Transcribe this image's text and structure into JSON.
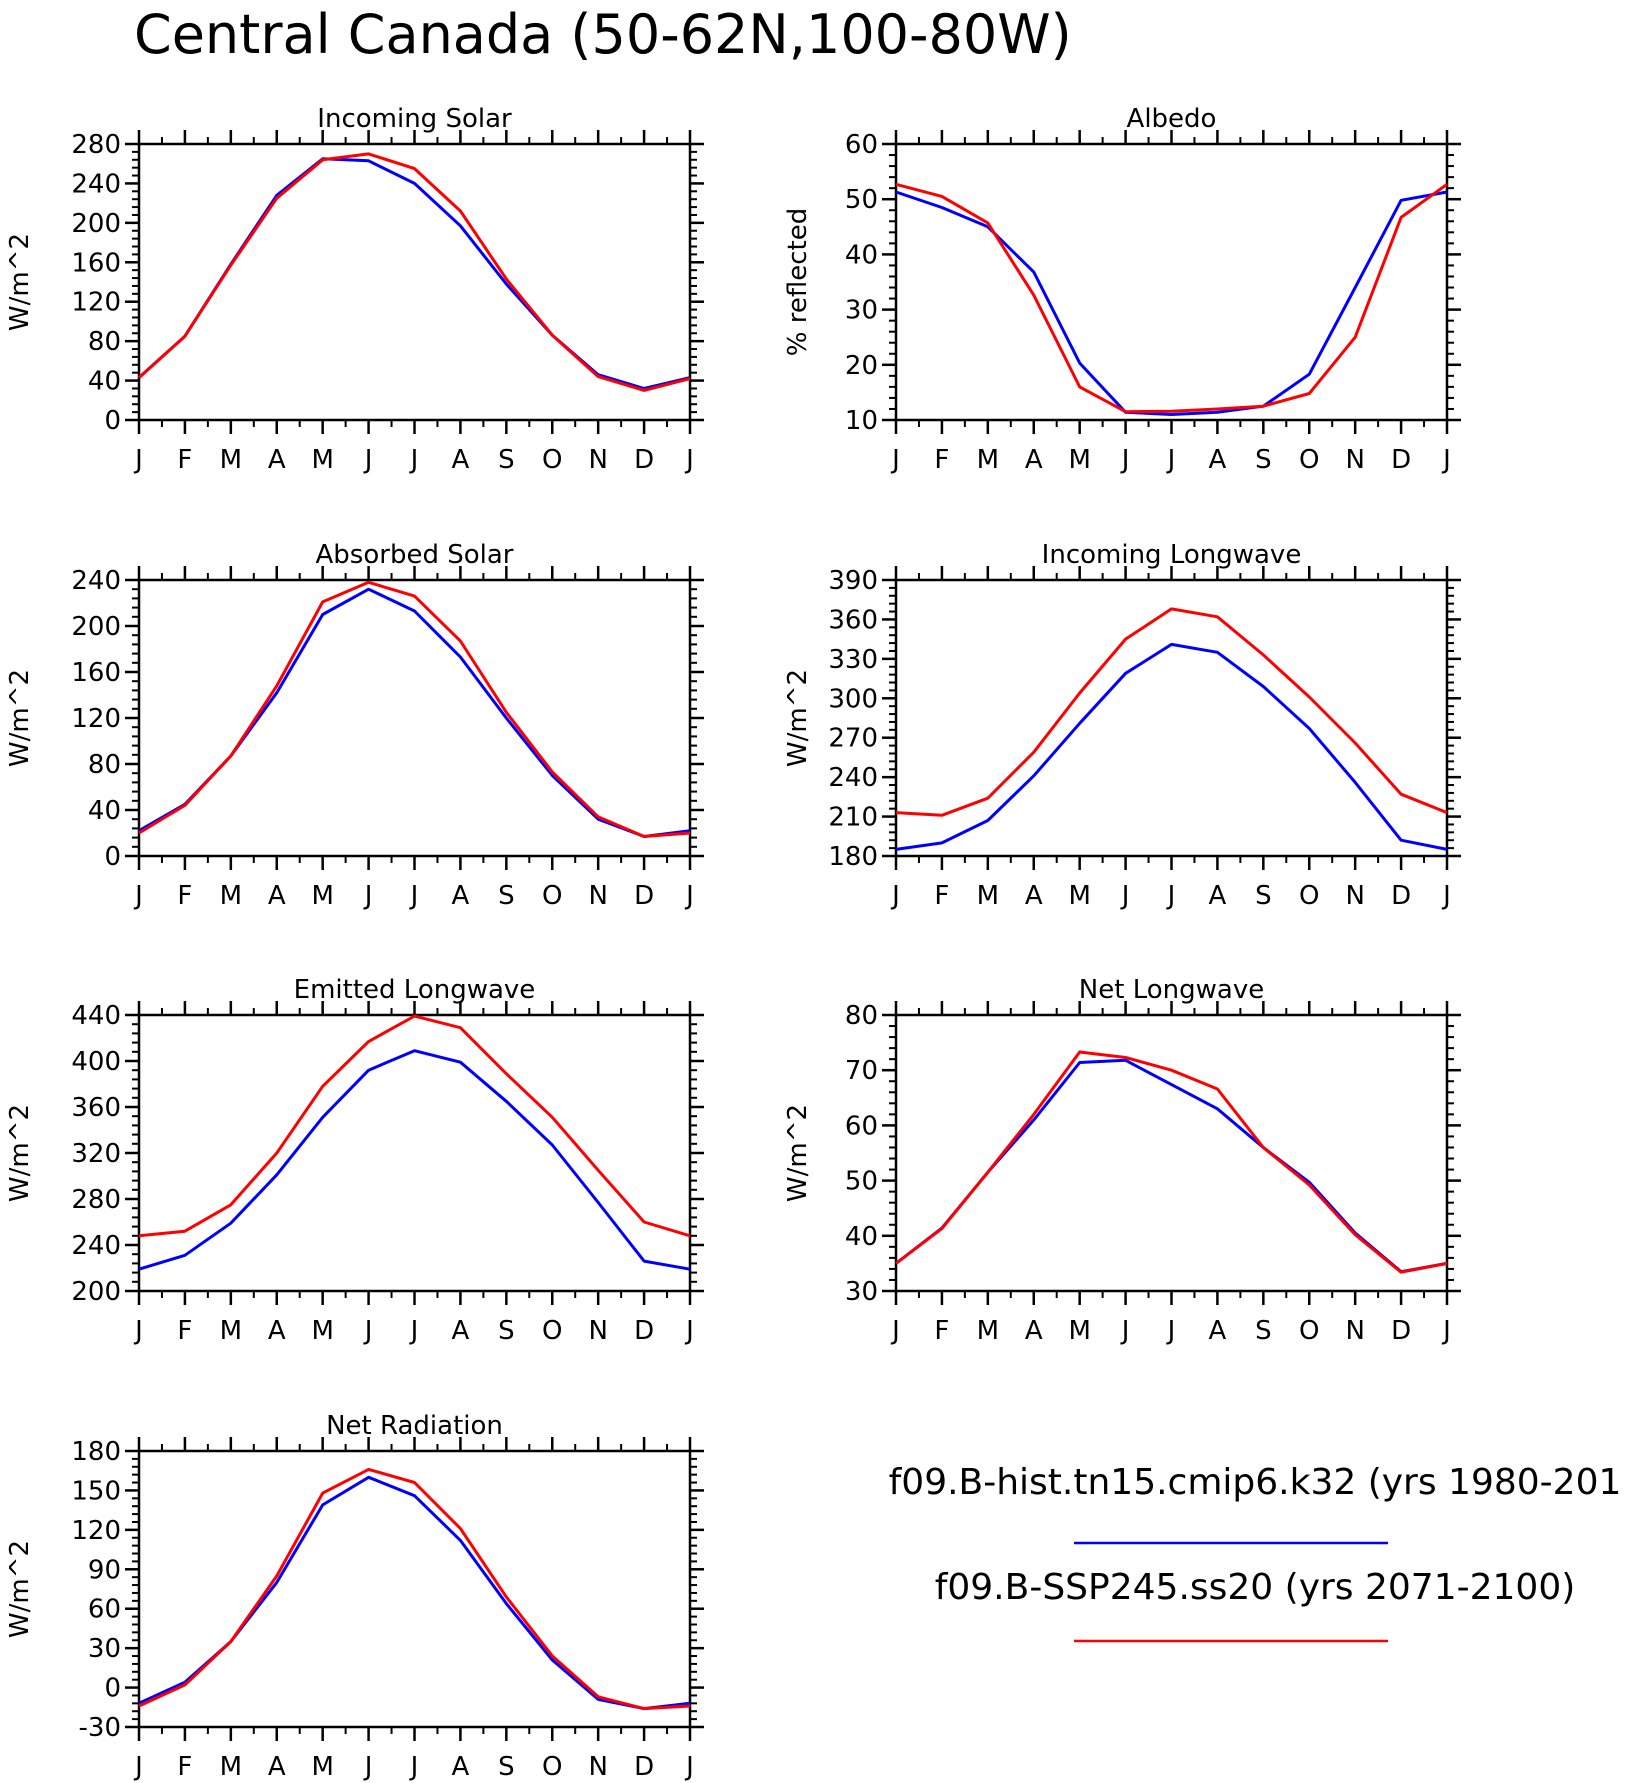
{
  "title": "Central Canada (50-62N,100-80W)",
  "legend": [
    {
      "label": "f09.B-hist.tn15.cmip6.k32 (yrs 1980-201",
      "color": "#0000ff"
    },
    {
      "label": "f09.B-SSP245.ss20 (yrs 2071-2100)",
      "color": "#ff0000"
    }
  ],
  "chart_data": [
    {
      "type": "line",
      "title": "Incoming Solar",
      "ylabel": "W/m^2",
      "ylim": [
        0,
        280
      ],
      "yticks": [
        0,
        40,
        80,
        120,
        160,
        200,
        240,
        280
      ],
      "x": [
        "J",
        "F",
        "M",
        "A",
        "M",
        "J",
        "J",
        "A",
        "S",
        "O",
        "N",
        "D",
        "J"
      ],
      "series": [
        {
          "color": "#0000ff",
          "values": [
            43,
            85,
            158,
            228,
            265,
            263,
            240,
            197,
            138,
            86,
            46,
            32,
            43
          ]
        },
        {
          "color": "#ff0000",
          "values": [
            43,
            85,
            157,
            225,
            264,
            270,
            255,
            212,
            143,
            86,
            44,
            30,
            42
          ]
        }
      ]
    },
    {
      "type": "line",
      "title": "Albedo",
      "ylabel": "% reflected",
      "ylim": [
        10,
        60
      ],
      "yticks": [
        10,
        20,
        30,
        40,
        50,
        60
      ],
      "x": [
        "J",
        "F",
        "M",
        "A",
        "M",
        "J",
        "J",
        "A",
        "S",
        "O",
        "N",
        "D",
        "J"
      ],
      "series": [
        {
          "color": "#0000ff",
          "values": [
            51.3,
            48.5,
            45.0,
            36.8,
            20.3,
            11.4,
            11.0,
            11.4,
            12.5,
            18.3,
            34.0,
            49.8,
            51.3
          ]
        },
        {
          "color": "#ff0000",
          "values": [
            52.7,
            50.5,
            45.7,
            32.6,
            16.0,
            11.5,
            11.6,
            12.0,
            12.5,
            14.8,
            25.0,
            46.7,
            52.7
          ]
        }
      ]
    },
    {
      "type": "line",
      "title": "Absorbed Solar",
      "ylabel": "W/m^2",
      "ylim": [
        0,
        240
      ],
      "yticks": [
        0,
        40,
        80,
        120,
        160,
        200,
        240
      ],
      "x": [
        "J",
        "F",
        "M",
        "A",
        "M",
        "J",
        "J",
        "A",
        "S",
        "O",
        "N",
        "D",
        "J"
      ],
      "series": [
        {
          "color": "#0000ff",
          "values": [
            22,
            45,
            87,
            142,
            210,
            232,
            213,
            173,
            120,
            70,
            32,
            17,
            22
          ]
        },
        {
          "color": "#ff0000",
          "values": [
            20,
            44,
            87,
            148,
            221,
            238,
            226,
            187,
            125,
            73,
            34,
            17,
            20
          ]
        }
      ]
    },
    {
      "type": "line",
      "title": "Incoming Longwave",
      "ylabel": "W/m^2",
      "ylim": [
        180,
        390
      ],
      "yticks": [
        180,
        210,
        240,
        270,
        300,
        330,
        360,
        390
      ],
      "x": [
        "J",
        "F",
        "M",
        "A",
        "M",
        "J",
        "J",
        "A",
        "S",
        "O",
        "N",
        "D",
        "J"
      ],
      "series": [
        {
          "color": "#0000ff",
          "values": [
            185,
            190,
            207,
            241,
            281,
            319,
            341,
            335,
            309,
            277,
            236,
            192,
            185
          ]
        },
        {
          "color": "#ff0000",
          "values": [
            213,
            211,
            224,
            259,
            304,
            345,
            368,
            362,
            333,
            301,
            266,
            227,
            213
          ]
        }
      ]
    },
    {
      "type": "line",
      "title": "Emitted Longwave",
      "ylabel": "W/m^2",
      "ylim": [
        200,
        440
      ],
      "yticks": [
        200,
        240,
        280,
        320,
        360,
        400,
        440
      ],
      "x": [
        "J",
        "F",
        "M",
        "A",
        "M",
        "J",
        "J",
        "A",
        "S",
        "O",
        "N",
        "D",
        "J"
      ],
      "series": [
        {
          "color": "#0000ff",
          "values": [
            219,
            231,
            259,
            301,
            351,
            392,
            409,
            399,
            365,
            327,
            277,
            226,
            219
          ]
        },
        {
          "color": "#ff0000",
          "values": [
            248,
            252,
            275,
            320,
            378,
            417,
            439,
            429,
            389,
            351,
            305,
            260,
            248
          ]
        }
      ]
    },
    {
      "type": "line",
      "title": "Net Longwave",
      "ylabel": "W/m^2",
      "ylim": [
        30,
        80
      ],
      "yticks": [
        30,
        40,
        50,
        60,
        70,
        80
      ],
      "x": [
        "J",
        "F",
        "M",
        "A",
        "M",
        "J",
        "J",
        "A",
        "S",
        "O",
        "N",
        "D",
        "J"
      ],
      "series": [
        {
          "color": "#0000ff",
          "values": [
            35.0,
            41.4,
            51.5,
            61.0,
            71.4,
            71.8,
            67.4,
            63.0,
            56.0,
            49.7,
            40.5,
            33.5,
            35.0
          ]
        },
        {
          "color": "#ff0000",
          "values": [
            35.0,
            41.3,
            51.5,
            62.0,
            73.3,
            72.3,
            70.0,
            66.6,
            56.0,
            49.2,
            40.2,
            33.4,
            35.0
          ]
        }
      ]
    },
    {
      "type": "line",
      "title": "Net Radiation",
      "ylabel": "W/m^2",
      "ylim": [
        -30,
        180
      ],
      "yticks": [
        -30,
        0,
        30,
        60,
        90,
        120,
        150,
        180
      ],
      "x": [
        "J",
        "F",
        "M",
        "A",
        "M",
        "J",
        "J",
        "A",
        "S",
        "O",
        "N",
        "D",
        "J"
      ],
      "series": [
        {
          "color": "#0000ff",
          "values": [
            -12,
            4,
            35,
            80,
            139,
            160,
            146,
            112,
            64,
            21,
            -9,
            -16,
            -12
          ]
        },
        {
          "color": "#ff0000",
          "values": [
            -14,
            2,
            35,
            85,
            148,
            166,
            156,
            121,
            69,
            24,
            -7,
            -16,
            -14
          ]
        }
      ]
    }
  ]
}
